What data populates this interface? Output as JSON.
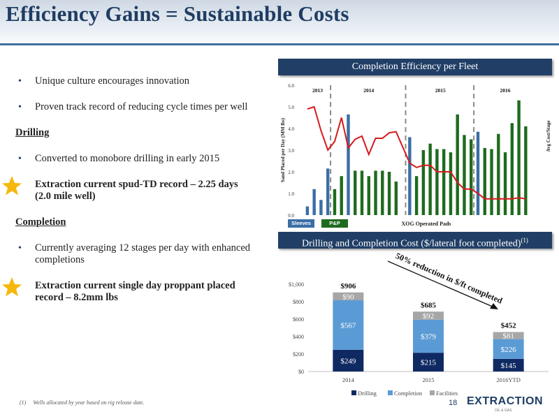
{
  "title": "Efficiency Gains = Sustainable Costs",
  "bullets": {
    "b1": "Unique culture encourages innovation",
    "b2": "Proven track record of reducing cycle times per well",
    "drilling_head": "Drilling",
    "b3": "Converted to monobore drilling in early 2015",
    "b4": "Extraction current spud-TD record – 2.25 days (2.0 mile well)",
    "completion_head": "Completion",
    "b5": "Currently averaging 12 stages per day with enhanced completions",
    "b6": "Extraction current single day proppant placed record – 8.2mm lbs"
  },
  "panel1_title": "Completion Efficiency per Fleet",
  "panel2_title": "Drilling and Completion Cost ($/lateral foot completed)",
  "panel2_sup": "(1)",
  "footnote_marker": "(1)",
  "footnote": "Wells allocated by year based on rig release date.",
  "page_number": "18",
  "logo": "EXTRACTION",
  "logo_sub": "OIL & GAS",
  "colors": {
    "navy": "#213f66",
    "green": "#1e6b1e",
    "red": "#d7191c",
    "drilling": "#0f2a63",
    "completion": "#5b9bd5",
    "facilities": "#a6a6a6",
    "sleeves": "#3a6ea5",
    "pnp": "#1e6b1e"
  },
  "chart_data": [
    {
      "type": "bar",
      "title": "Completion Efficiency per Fleet",
      "ylabel": "Sand Placed per Day (MM lbs)",
      "xlabel": "XOG Operated Pads",
      "secondary_ylabel": "Avg Cost/Stage",
      "ylim": [
        0,
        6
      ],
      "yticks": [
        "0.0",
        "1.0",
        "2.0",
        "3.0",
        "4.0",
        "5.0",
        "6.0"
      ],
      "years": [
        "2013",
        "2014",
        "2015",
        "2016"
      ],
      "legend": [
        "Sleeves",
        "P&P"
      ],
      "series": [
        {
          "name": "Sleeves",
          "values": [
            0.4,
            1.2,
            0.7,
            2.15,
            null,
            null,
            4.65,
            null,
            null,
            null,
            null,
            null,
            null,
            null,
            null,
            3.6,
            null,
            null,
            null,
            null,
            null,
            null,
            null,
            null,
            null,
            3.85,
            null,
            null,
            null,
            null,
            null,
            null,
            null,
            null
          ]
        },
        {
          "name": "P&P",
          "values": [
            null,
            null,
            null,
            null,
            1.2,
            1.8,
            null,
            2.05,
            2.05,
            1.8,
            2.05,
            2.05,
            2.0,
            1.55,
            null,
            null,
            1.8,
            3.0,
            3.3,
            3.05,
            3.05,
            2.9,
            4.65,
            3.7,
            3.5,
            null,
            3.1,
            3.05,
            3.75,
            2.9,
            4.25,
            5.3,
            4.1,
            null
          ]
        },
        {
          "name": "Avg Cost/Stage",
          "values": [
            4.9,
            5.0,
            3.9,
            3.0,
            3.4,
            4.5,
            3.1,
            3.5,
            3.65,
            2.8,
            3.55,
            3.55,
            3.8,
            3.85,
            null,
            2.4,
            2.2,
            2.3,
            2.3,
            2.0,
            2.0,
            2.0,
            1.5,
            1.2,
            1.2,
            1.0,
            0.75,
            0.75,
            0.75,
            0.75,
            0.75,
            0.8,
            0.75,
            null
          ]
        }
      ]
    },
    {
      "type": "bar",
      "stacked": true,
      "categories": [
        "2014",
        "2015",
        "2016YTD"
      ],
      "ylim": [
        0,
        1000
      ],
      "yticks": [
        "$0",
        "$200",
        "$400",
        "$600",
        "$800",
        "$1,000"
      ],
      "series": [
        {
          "name": "Drilling",
          "values": [
            249,
            215,
            145
          ],
          "labels": [
            "$249",
            "$215",
            "$145"
          ]
        },
        {
          "name": "Completion",
          "values": [
            567,
            379,
            226
          ],
          "labels": [
            "$567",
            "$379",
            "$226"
          ]
        },
        {
          "name": "Facilities",
          "values": [
            90,
            92,
            81
          ],
          "labels": [
            "$90",
            "$92",
            "$81"
          ]
        }
      ],
      "totals": [
        "$906",
        "$685",
        "$452"
      ],
      "annotation": "50% reduction in $/ft completed"
    }
  ]
}
